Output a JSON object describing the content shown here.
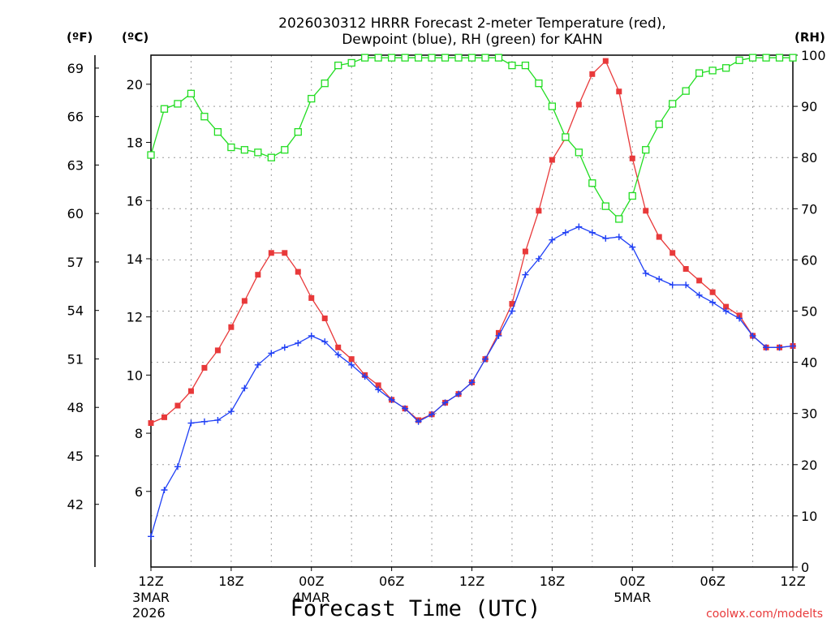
{
  "chart_data": {
    "type": "line",
    "title_line1": "2026030312 HRRR Forecast 2-meter Temperature (red),",
    "title_line2": "Dewpoint (blue), RH (green) for KAHN",
    "unit_f": "(ºF)",
    "unit_c": "(ºC)",
    "unit_rh": "(RH)",
    "xlabel": "Forecast Time (UTC)",
    "credit": "coolwx.com/modelts",
    "x_range_hours": [
      0,
      48
    ],
    "celsius_ylim": [
      3.4,
      21.0
    ],
    "rh_ylim": [
      0,
      100
    ],
    "x_ticks": [
      {
        "hour": 0,
        "label": "12Z",
        "sub1": "3MAR",
        "sub2": "2026"
      },
      {
        "hour": 6,
        "label": "18Z",
        "sub1": "",
        "sub2": ""
      },
      {
        "hour": 12,
        "label": "00Z",
        "sub1": "4MAR",
        "sub2": ""
      },
      {
        "hour": 18,
        "label": "06Z",
        "sub1": "",
        "sub2": ""
      },
      {
        "hour": 24,
        "label": "12Z",
        "sub1": "",
        "sub2": ""
      },
      {
        "hour": 30,
        "label": "18Z",
        "sub1": "",
        "sub2": ""
      },
      {
        "hour": 36,
        "label": "00Z",
        "sub1": "5MAR",
        "sub2": ""
      },
      {
        "hour": 42,
        "label": "06Z",
        "sub1": "",
        "sub2": ""
      },
      {
        "hour": 48,
        "label": "12Z",
        "sub1": "",
        "sub2": ""
      }
    ],
    "celsius_ticks": [
      6,
      8,
      10,
      12,
      14,
      16,
      18,
      20
    ],
    "fahrenheit_ticks": [
      42,
      45,
      48,
      51,
      54,
      57,
      60,
      63,
      66,
      69
    ],
    "rh_ticks": [
      0,
      10,
      20,
      30,
      40,
      50,
      60,
      70,
      80,
      90,
      100
    ],
    "series": [
      {
        "name": "2-meter Temperature (°C)",
        "axis": "celsius",
        "color": "#e8393a",
        "marker": "filled-square",
        "values": [
          8.35,
          8.55,
          8.95,
          9.45,
          10.25,
          10.85,
          11.65,
          12.55,
          13.45,
          14.2,
          14.2,
          13.55,
          12.65,
          11.95,
          10.95,
          10.55,
          10.0,
          9.65,
          9.15,
          8.85,
          8.45,
          8.65,
          9.05,
          9.35,
          9.75,
          10.55,
          11.45,
          12.45,
          14.25,
          15.65,
          17.4,
          18.15,
          19.3,
          20.35,
          20.8,
          19.75,
          17.45,
          15.65,
          14.75,
          14.2,
          13.65,
          13.25,
          12.85,
          12.35,
          12.05,
          11.35,
          10.95,
          10.95,
          11.0
        ]
      },
      {
        "name": "Dewpoint (°C)",
        "axis": "celsius",
        "color": "#1f3ff5",
        "marker": "plus",
        "values": [
          4.45,
          6.05,
          6.85,
          8.35,
          8.4,
          8.45,
          8.75,
          9.55,
          10.35,
          10.75,
          10.95,
          11.1,
          11.35,
          11.15,
          10.7,
          10.35,
          9.95,
          9.5,
          9.15,
          8.85,
          8.4,
          8.65,
          9.05,
          9.35,
          9.75,
          10.55,
          11.35,
          12.2,
          13.45,
          14.0,
          14.65,
          14.9,
          15.1,
          14.9,
          14.7,
          14.75,
          14.4,
          13.5,
          13.3,
          13.1,
          13.1,
          12.75,
          12.5,
          12.2,
          11.95,
          11.35,
          10.95,
          10.95,
          11.0
        ]
      },
      {
        "name": "RH (%)",
        "axis": "rh",
        "color": "#22dd22",
        "marker": "open-square",
        "values": [
          80.5,
          89.5,
          90.5,
          92.5,
          88.0,
          85.0,
          82.0,
          81.5,
          81.0,
          80.0,
          81.5,
          85.0,
          91.5,
          94.5,
          98.0,
          98.5,
          99.5,
          99.5,
          99.5,
          99.5,
          99.5,
          99.5,
          99.5,
          99.5,
          99.5,
          99.5,
          99.5,
          98.0,
          98.0,
          94.5,
          90.0,
          84.0,
          81.0,
          75.0,
          70.5,
          68.0,
          72.5,
          81.5,
          86.5,
          90.5,
          93.0,
          96.5,
          97.0,
          97.5,
          99.0,
          99.5,
          99.5,
          99.5,
          99.5
        ]
      }
    ]
  }
}
